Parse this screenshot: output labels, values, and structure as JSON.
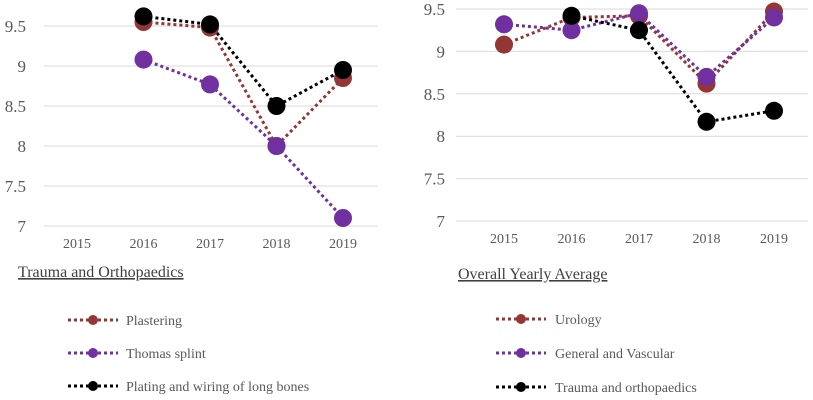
{
  "chart_data": [
    {
      "type": "line",
      "title": "Trauma and Orthopaedics",
      "x": [
        "2015",
        "2016",
        "2017",
        "2018",
        "2019"
      ],
      "ylim": [
        7,
        9.5
      ],
      "yticks": [
        "7",
        "7.5",
        "8",
        "8.5",
        "9",
        "9.5"
      ],
      "grid": true,
      "legend_position": "bottom",
      "series": [
        {
          "name": "Plastering",
          "color": "#943634",
          "values": [
            null,
            9.55,
            9.48,
            8.0,
            8.85
          ]
        },
        {
          "name": "Thomas splint",
          "color": "#7030A0",
          "values": [
            null,
            9.08,
            8.77,
            8.0,
            7.1
          ]
        },
        {
          "name": "Plating and wiring of long bones",
          "color": "#000000",
          "values": [
            null,
            9.62,
            9.52,
            8.5,
            8.95
          ]
        }
      ]
    },
    {
      "type": "line",
      "title": "Overall Yearly Average",
      "x": [
        "2015",
        "2016",
        "2017",
        "2018",
        "2019"
      ],
      "ylim": [
        7,
        9.5
      ],
      "yticks": [
        "7",
        "7.5",
        "8",
        "8.5",
        "9",
        "9.5"
      ],
      "grid": true,
      "legend_position": "bottom",
      "series": [
        {
          "name": "Urology",
          "color": "#943634",
          "values": [
            9.08,
            9.4,
            9.42,
            8.62,
            9.47
          ]
        },
        {
          "name": "General and Vascular",
          "color": "#7030A0",
          "values": [
            9.32,
            9.25,
            9.45,
            8.7,
            9.4
          ]
        },
        {
          "name": "Trauma and orthopaedics",
          "color": "#000000",
          "values": [
            null,
            9.42,
            9.25,
            8.17,
            8.3
          ]
        }
      ]
    }
  ]
}
